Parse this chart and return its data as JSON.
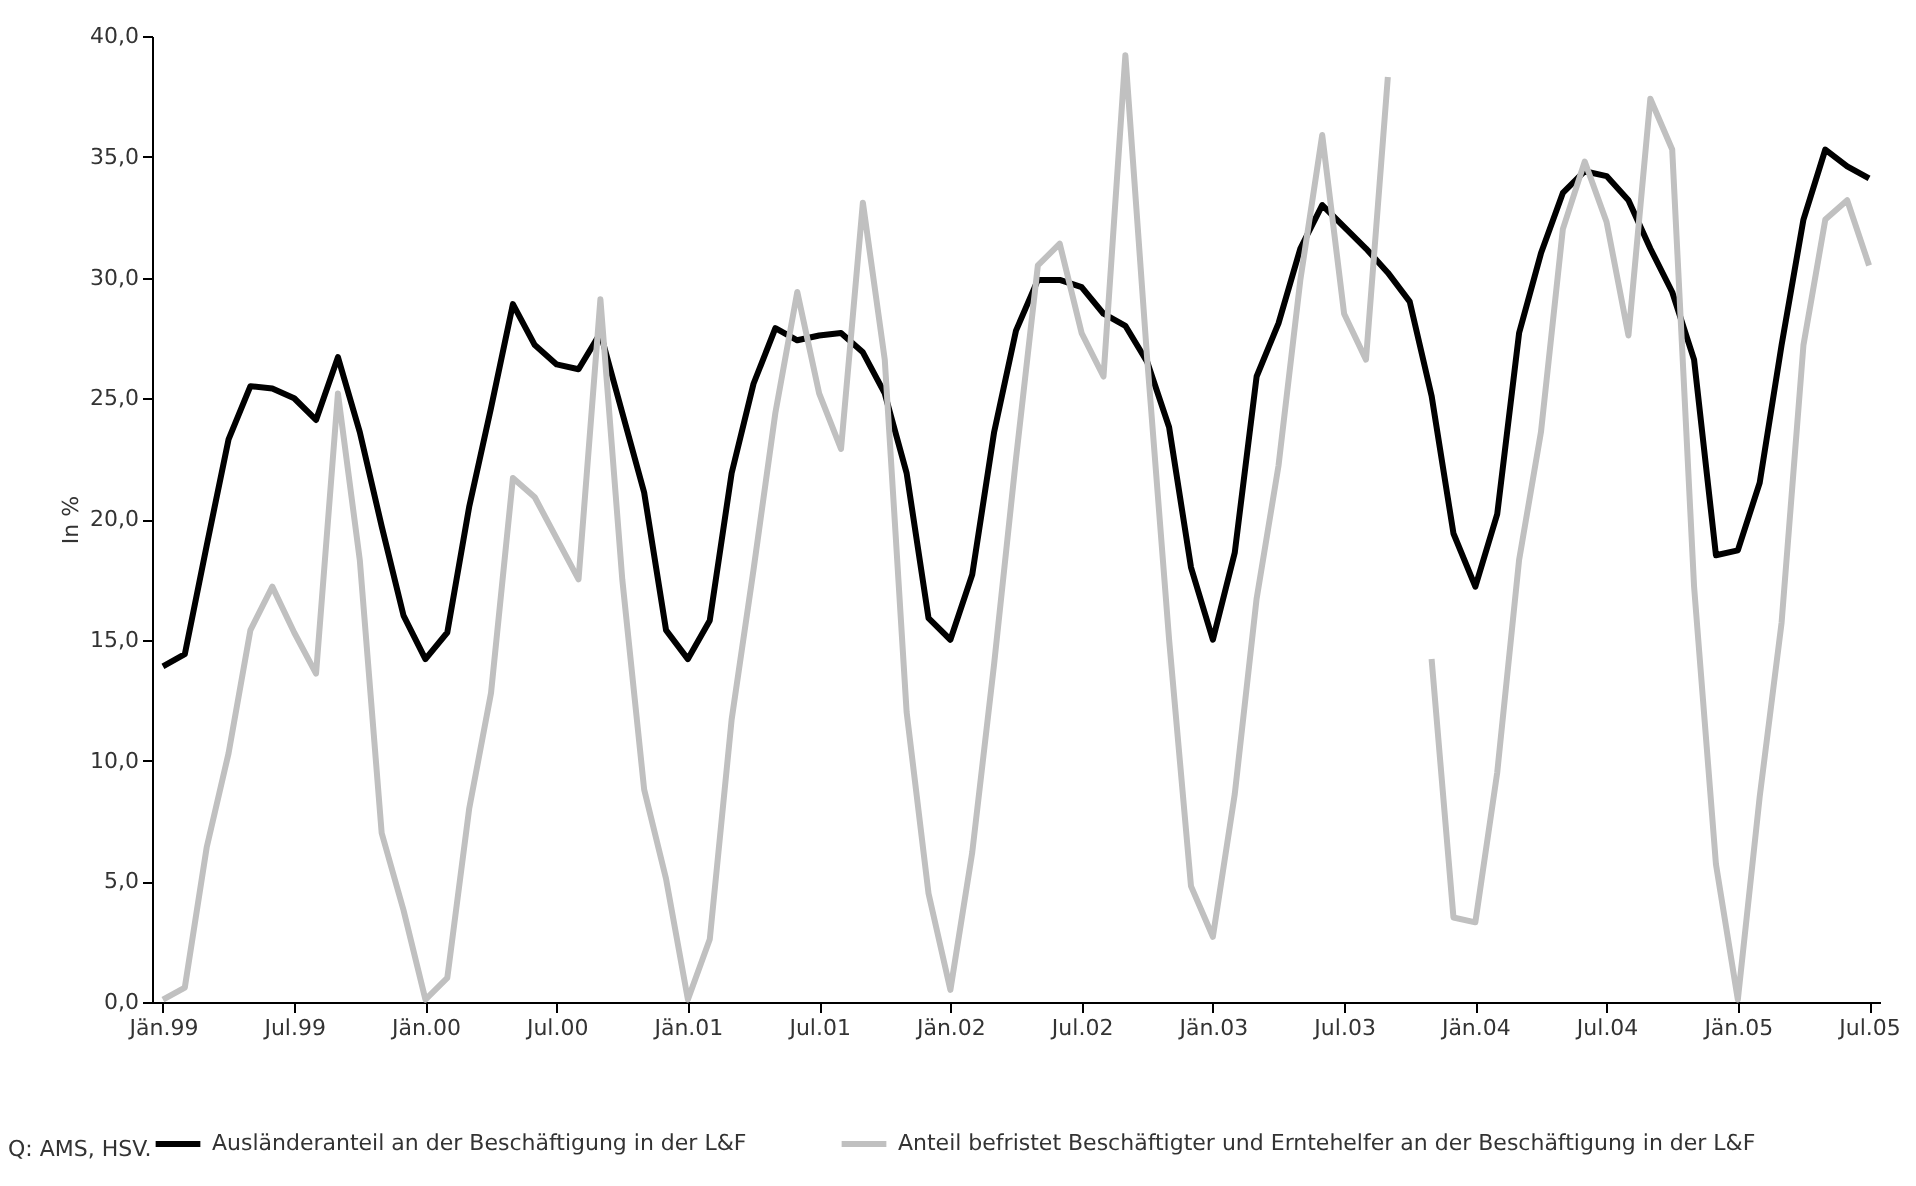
{
  "chart_data": {
    "type": "line",
    "ylabel": "In %",
    "categories": [
      "Jän.99",
      null,
      null,
      null,
      null,
      null,
      "Jul.99",
      null,
      null,
      null,
      null,
      null,
      "Jän.00",
      null,
      null,
      null,
      null,
      null,
      "Jul.00",
      null,
      null,
      null,
      null,
      null,
      "Jän.01",
      null,
      null,
      null,
      null,
      null,
      "Jul.01",
      null,
      null,
      null,
      null,
      null,
      "Jän.02",
      null,
      null,
      null,
      null,
      null,
      "Jul.02",
      null,
      null,
      null,
      null,
      null,
      "Jän.03",
      null,
      null,
      null,
      null,
      null,
      "Jul.03",
      null,
      null,
      null,
      null,
      null,
      "Jän.04",
      null,
      null,
      null,
      null,
      null,
      "Jul.04",
      null,
      null,
      null,
      null,
      null,
      "Jän.05",
      null,
      null,
      null,
      null,
      null,
      "Jul.05"
    ],
    "series": [
      {
        "name": "Ausländeranteil an der Beschäftigung in der L&F",
        "color": "#000000",
        "values": [
          13.9,
          14.4,
          18.9,
          23.3,
          25.5,
          25.4,
          25.0,
          24.1,
          26.7,
          23.6,
          19.7,
          16.0,
          14.2,
          15.3,
          20.5,
          24.6,
          28.9,
          27.2,
          26.4,
          26.2,
          27.7,
          24.4,
          21.1,
          15.4,
          14.2,
          15.8,
          21.9,
          25.6,
          27.9,
          27.4,
          27.6,
          27.7,
          26.9,
          25.2,
          21.9,
          15.9,
          15.0,
          17.7,
          23.6,
          27.8,
          29.9,
          29.9,
          29.6,
          28.5,
          28.0,
          26.5,
          23.8,
          18.0,
          15.0,
          18.6,
          25.9,
          28.1,
          31.2,
          33.0,
          32.1,
          31.2,
          30.2,
          29.0,
          25.1,
          19.4,
          17.2,
          20.2,
          27.7,
          31.0,
          33.5,
          34.4,
          34.2,
          33.2,
          31.2,
          29.4,
          26.6,
          18.5,
          18.7,
          21.5,
          27.2,
          32.4,
          35.3,
          34.6,
          34.1
        ]
      },
      {
        "name": "Anteil befristet Beschäftigter und Erntehelfer an der Beschäftigung in der L&F",
        "color": "#c0c0c0",
        "values": [
          0.1,
          0.6,
          6.4,
          10.3,
          15.4,
          17.2,
          15.3,
          13.6,
          25.2,
          18.3,
          7.0,
          3.8,
          0.1,
          1.0,
          8.0,
          12.8,
          21.7,
          20.9,
          19.2,
          17.5,
          29.1,
          17.5,
          8.8,
          5.1,
          0.1,
          2.6,
          11.7,
          17.9,
          24.4,
          29.4,
          25.2,
          22.9,
          33.1,
          26.6,
          12.0,
          4.5,
          0.5,
          6.2,
          14.0,
          22.5,
          30.5,
          31.4,
          27.7,
          25.9,
          39.2,
          26.6,
          15.0,
          4.8,
          2.7,
          8.6,
          16.7,
          22.2,
          29.9,
          35.9,
          28.5,
          26.6,
          38.3,
          null,
          14.2,
          3.5,
          3.3,
          9.5,
          18.3,
          23.6,
          32.0,
          34.8,
          32.3,
          27.6,
          37.4,
          35.3,
          17.2,
          5.7,
          0.1,
          8.5,
          15.7,
          27.2,
          32.4,
          33.2,
          30.5
        ]
      }
    ],
    "ylim": [
      0,
      40
    ],
    "yticks": [
      {
        "value": 0,
        "label": "0,0"
      },
      {
        "value": 5,
        "label": "5,0"
      },
      {
        "value": 10,
        "label": "10,0"
      },
      {
        "value": 15,
        "label": "15,0"
      },
      {
        "value": 20,
        "label": "20,0"
      },
      {
        "value": 25,
        "label": "25,0"
      },
      {
        "value": 30,
        "label": "30,0"
      },
      {
        "value": 35,
        "label": "35,0"
      },
      {
        "value": 40,
        "label": "40,0"
      }
    ],
    "grid": false,
    "legend": "bottom",
    "annotations": [
      "Q: AMS, HSV."
    ]
  }
}
